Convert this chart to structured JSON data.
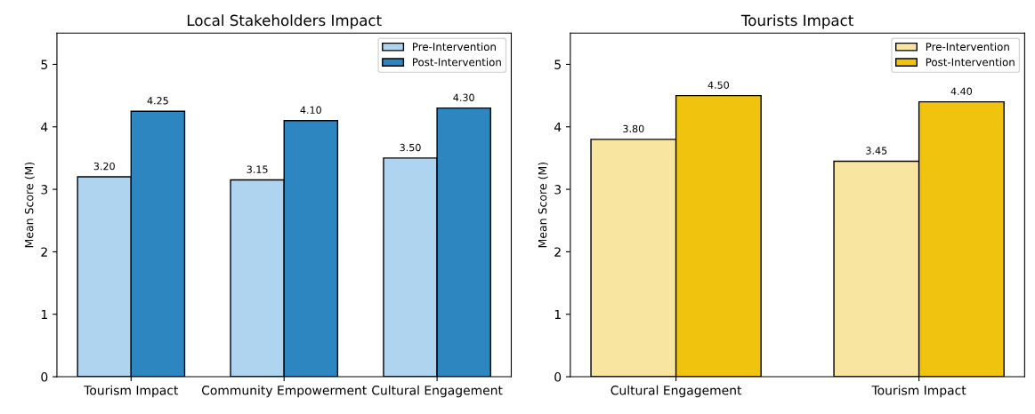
{
  "chart_data": [
    {
      "type": "bar",
      "title": "Local Stakeholders Impact",
      "ylabel": "Mean Score (M)",
      "categories": [
        "Tourism Impact",
        "Community Empowerment",
        "Cultural Engagement"
      ],
      "series": [
        {
          "name": "Pre-Intervention",
          "color": "#aed4ef",
          "values": [
            3.2,
            3.15,
            3.5
          ],
          "value_labels": [
            "3.20",
            "3.15",
            "3.50"
          ]
        },
        {
          "name": "Post-Intervention",
          "color": "#2e86c1",
          "values": [
            4.25,
            4.1,
            4.3
          ],
          "value_labels": [
            "4.25",
            "4.10",
            "4.30"
          ]
        }
      ],
      "ylim": [
        0,
        5.5
      ],
      "yticks": [
        0,
        1,
        2,
        3,
        4,
        5
      ],
      "legend": "top right",
      "grid": false
    },
    {
      "type": "bar",
      "title": "Tourists Impact",
      "ylabel": "Mean Score (M)",
      "categories": [
        "Cultural Engagement",
        "Tourism Impact"
      ],
      "series": [
        {
          "name": "Pre-Intervention",
          "color": "#f8e59f",
          "values": [
            3.8,
            3.45
          ],
          "value_labels": [
            "3.80",
            "3.45"
          ]
        },
        {
          "name": "Post-Intervention",
          "color": "#f0c30f",
          "values": [
            4.5,
            4.4
          ],
          "value_labels": [
            "4.50",
            "4.40"
          ]
        }
      ],
      "ylim": [
        0,
        5.5
      ],
      "yticks": [
        0,
        1,
        2,
        3,
        4,
        5
      ],
      "legend": "top right",
      "grid": false
    }
  ]
}
